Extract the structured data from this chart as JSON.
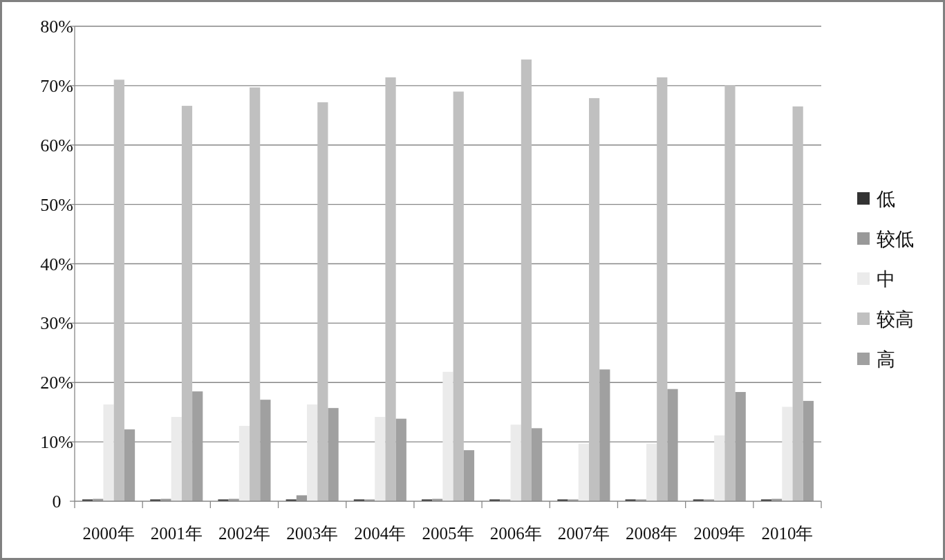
{
  "chart_data": {
    "type": "bar",
    "categories": [
      "2000年",
      "2001年",
      "2002年",
      "2003年",
      "2004年",
      "2005年",
      "2006年",
      "2007年",
      "2008年",
      "2009年",
      "2010年"
    ],
    "series": [
      {
        "name": "低",
        "color": "#333333",
        "values": [
          0.3,
          0.3,
          0.3,
          0.3,
          0.3,
          0.3,
          0.3,
          0.3,
          0.3,
          0.3,
          0.3
        ]
      },
      {
        "name": "较低",
        "color": "#999999",
        "values": [
          0.4,
          0.4,
          0.4,
          1.0,
          0.3,
          0.4,
          0.3,
          0.3,
          0.3,
          0.3,
          0.4
        ]
      },
      {
        "name": "中",
        "color": "#ebebeb",
        "values": [
          16.3,
          14.2,
          12.7,
          16.3,
          14.2,
          21.8,
          12.9,
          9.7,
          9.7,
          11.1,
          15.9
        ]
      },
      {
        "name": "较高",
        "color": "#c0c0c0",
        "values": [
          71.0,
          66.6,
          69.7,
          67.2,
          71.4,
          69.0,
          74.4,
          67.9,
          71.4,
          70.1,
          66.5
        ]
      },
      {
        "name": "高",
        "color": "#a0a0a0",
        "values": [
          12.1,
          18.5,
          17.1,
          15.7,
          13.9,
          8.6,
          12.3,
          22.2,
          18.9,
          18.4,
          16.9
        ]
      }
    ],
    "ylim": [
      0,
      80
    ],
    "yticks": [
      0,
      {
        "value": 10,
        "label": "10%"
      },
      {
        "value": 20,
        "label": "20%"
      },
      {
        "value": 30,
        "label": "30%"
      },
      {
        "value": 40,
        "label": "40%"
      },
      {
        "value": 50,
        "label": "50%"
      },
      {
        "value": 60,
        "label": "60%"
      },
      {
        "value": 70,
        "label": "70%"
      },
      {
        "value": 80,
        "label": "80%"
      }
    ],
    "grid": "y",
    "legend": "right"
  }
}
